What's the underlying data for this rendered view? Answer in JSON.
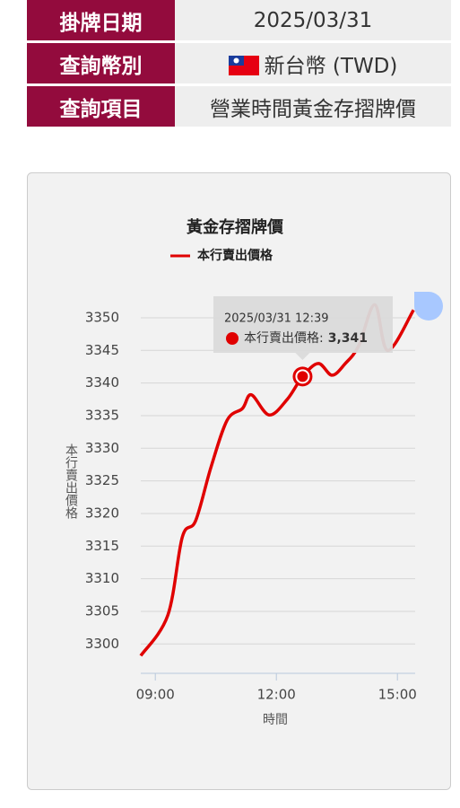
{
  "table": {
    "rows": [
      [
        "掛牌日期",
        "2025/03/31"
      ],
      [
        "查詢幣別",
        "新台幣 (TWD)"
      ],
      [
        "查詢項目",
        "營業時間黃金存摺牌價"
      ]
    ]
  },
  "chart_data": {
    "type": "line",
    "title": "黃金存摺牌價",
    "x_label": "時間",
    "y_label": "本行賣出價格",
    "x": [
      8.64,
      9.31,
      9.67,
      10.0,
      10.38,
      10.78,
      11.16,
      11.38,
      11.82,
      12.27,
      12.65,
      13.04,
      13.38,
      13.71,
      14.04,
      14.44,
      14.76,
      15.4
    ],
    "series": [
      {
        "name": "本行賣出價格",
        "color": "#e00000",
        "values": [
          3298.2,
          3304.4,
          3316.4,
          3318.9,
          3327.1,
          3334.3,
          3336.1,
          3338.2,
          3335.1,
          3337.5,
          3341,
          3343,
          3341.2,
          3343,
          3345.7,
          3352,
          3345,
          3351.2
        ]
      }
    ],
    "xlim": [
      8.64,
      15.44
    ],
    "ylim": [
      3295.5,
      3353.3
    ],
    "xticks": [
      {
        "value": 9,
        "label": "09:00"
      },
      {
        "value": 12,
        "label": "12:00"
      },
      {
        "value": 15,
        "label": "15:00"
      }
    ],
    "yticks": [
      3300,
      3305,
      3310,
      3315,
      3320,
      3325,
      3330,
      3335,
      3340,
      3345,
      3350
    ],
    "grid": true,
    "tooltip": {
      "title": "2025/03/31 12:39",
      "name": "本行賣出價格:",
      "value": 3341,
      "value_label": "3,341"
    }
  }
}
